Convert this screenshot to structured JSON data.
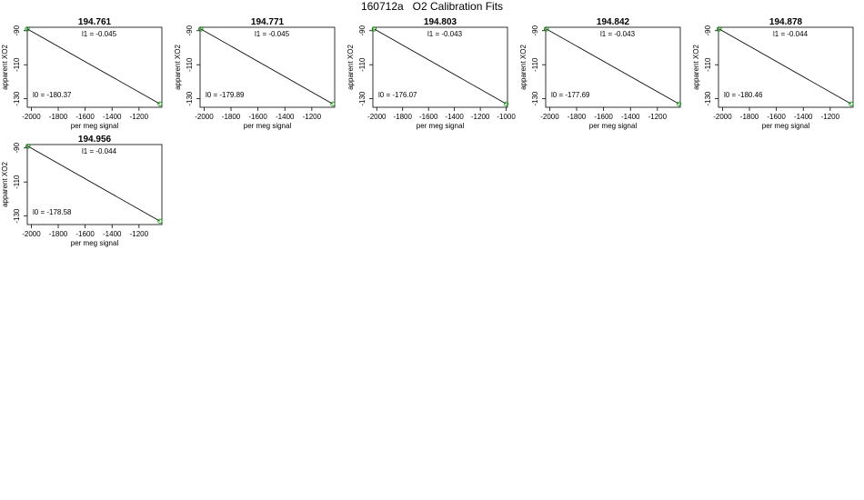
{
  "page_title": "160712a   O2 Calibration Fits",
  "chart_data": [
    {
      "type": "scatter",
      "title": "194.761",
      "xlabel": "per meg signal",
      "ylabel": "apparent XO2",
      "xlim": [
        -2030,
        -1030
      ],
      "ylim": [
        -135,
        -88
      ],
      "xticks": [
        -2000,
        -1800,
        -1600,
        -1400,
        -1200
      ],
      "yticks": [
        -90,
        -110,
        -130
      ],
      "points": [
        {
          "x": -2030,
          "y": -89,
          "color": "#000000",
          "marker": "circle"
        },
        {
          "x": -2030,
          "y": -89,
          "color": "#00aa00",
          "marker": "circle"
        },
        {
          "x": -1045,
          "y": -133,
          "color": "#00aa00",
          "marker": "circle"
        }
      ],
      "fit_line": [
        {
          "x": -2030,
          "y": -89
        },
        {
          "x": -1045,
          "y": -133
        }
      ],
      "annotations": {
        "l1": "l1 =  -0.045",
        "l0": "l0 =  -180.37"
      },
      "grid": false
    },
    {
      "type": "scatter",
      "title": "194.771",
      "xlabel": "per meg signal",
      "ylabel": "apparent XO2",
      "xlim": [
        -2030,
        -1030
      ],
      "ylim": [
        -135,
        -88
      ],
      "xticks": [
        -2000,
        -1800,
        -1600,
        -1400,
        -1200
      ],
      "yticks": [
        -90,
        -110,
        -130
      ],
      "points": [
        {
          "x": -2025,
          "y": -89,
          "color": "#000000",
          "marker": "circle"
        },
        {
          "x": -2025,
          "y": -89,
          "color": "#00aa00",
          "marker": "circle"
        },
        {
          "x": -1045,
          "y": -133,
          "color": "#00aa00",
          "marker": "circle"
        }
      ],
      "fit_line": [
        {
          "x": -2025,
          "y": -89
        },
        {
          "x": -1045,
          "y": -133
        }
      ],
      "annotations": {
        "l1": "l1 =  -0.045",
        "l0": "l0 =  -179.89"
      },
      "grid": false
    },
    {
      "type": "scatter",
      "title": "194.803",
      "xlabel": "per meg signal",
      "ylabel": "apparent XO2",
      "xlim": [
        -2030,
        -990
      ],
      "ylim": [
        -135,
        -88
      ],
      "xticks": [
        -2000,
        -1800,
        -1600,
        -1400,
        -1200,
        -1000
      ],
      "yticks": [
        -90,
        -110,
        -130
      ],
      "points": [
        {
          "x": -2020,
          "y": -89,
          "color": "#000000",
          "marker": "circle"
        },
        {
          "x": -2020,
          "y": -89,
          "color": "#00aa00",
          "marker": "circle"
        },
        {
          "x": -1000,
          "y": -133,
          "color": "#00aa00",
          "marker": "circle"
        }
      ],
      "fit_line": [
        {
          "x": -2020,
          "y": -89
        },
        {
          "x": -1000,
          "y": -133
        }
      ],
      "annotations": {
        "l1": "l1 =  -0.043",
        "l0": "l0 =  -176.07"
      },
      "grid": false
    },
    {
      "type": "scatter",
      "title": "194.842",
      "xlabel": "per meg signal",
      "ylabel": "apparent XO2",
      "xlim": [
        -2030,
        -1030
      ],
      "ylim": [
        -135,
        -88
      ],
      "xticks": [
        -2000,
        -1800,
        -1600,
        -1400,
        -1200
      ],
      "yticks": [
        -90,
        -110,
        -130
      ],
      "points": [
        {
          "x": -2025,
          "y": -89,
          "color": "#000000",
          "marker": "circle"
        },
        {
          "x": -2025,
          "y": -89,
          "color": "#00aa00",
          "marker": "circle"
        },
        {
          "x": -1040,
          "y": -133,
          "color": "#00aa00",
          "marker": "circle"
        }
      ],
      "fit_line": [
        {
          "x": -2025,
          "y": -89
        },
        {
          "x": -1040,
          "y": -133
        }
      ],
      "annotations": {
        "l1": "l1 =  -0.043",
        "l0": "l0 =  -177.69"
      },
      "grid": false
    },
    {
      "type": "scatter",
      "title": "194.878",
      "xlabel": "per meg signal",
      "ylabel": "apparent XO2",
      "xlim": [
        -2030,
        -1030
      ],
      "ylim": [
        -135,
        -88
      ],
      "xticks": [
        -2000,
        -1800,
        -1600,
        -1400,
        -1200
      ],
      "yticks": [
        -90,
        -110,
        -130
      ],
      "points": [
        {
          "x": -2025,
          "y": -89,
          "color": "#000000",
          "marker": "circle"
        },
        {
          "x": -2025,
          "y": -89,
          "color": "#00aa00",
          "marker": "circle"
        },
        {
          "x": -1045,
          "y": -133,
          "color": "#00aa00",
          "marker": "circle"
        }
      ],
      "fit_line": [
        {
          "x": -2025,
          "y": -89
        },
        {
          "x": -1045,
          "y": -133
        }
      ],
      "annotations": {
        "l1": "l1 =  -0.044",
        "l0": "l0 =  -180.46"
      },
      "grid": false
    },
    {
      "type": "scatter",
      "title": "194.956",
      "xlabel": "per meg signal",
      "ylabel": "apparent XO2",
      "xlim": [
        -2030,
        -1030
      ],
      "ylim": [
        -135,
        -88
      ],
      "xticks": [
        -2000,
        -1800,
        -1600,
        -1400,
        -1200
      ],
      "yticks": [
        -90,
        -110,
        -130
      ],
      "points": [
        {
          "x": -2025,
          "y": -89,
          "color": "#000000",
          "marker": "circle"
        },
        {
          "x": -2025,
          "y": -89,
          "color": "#00aa00",
          "marker": "circle"
        },
        {
          "x": -1045,
          "y": -133,
          "color": "#00aa00",
          "marker": "circle"
        }
      ],
      "fit_line": [
        {
          "x": -2025,
          "y": -89
        },
        {
          "x": -1045,
          "y": -133
        }
      ],
      "annotations": {
        "l1": "l1 =  -0.044",
        "l0": "l0 =  -178.58"
      },
      "grid": false
    }
  ]
}
